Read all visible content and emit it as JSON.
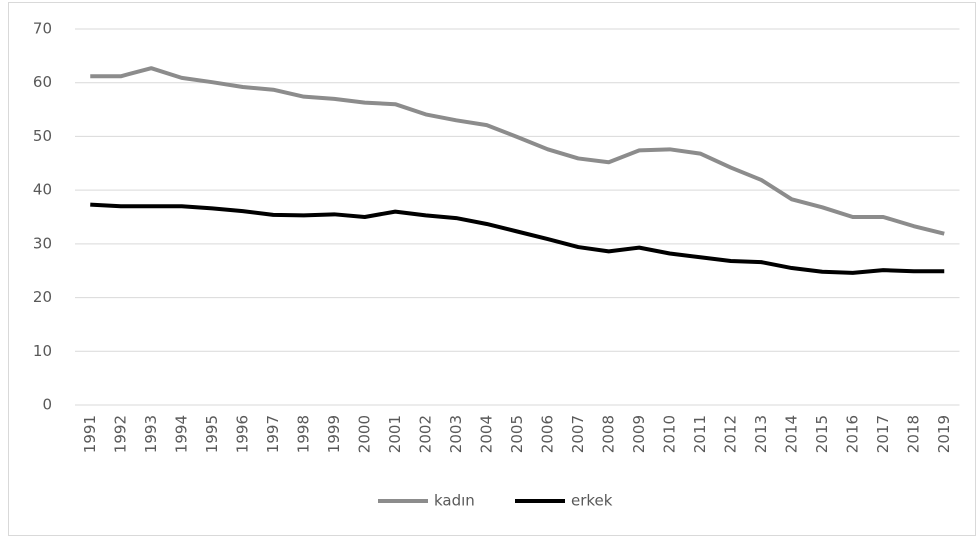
{
  "chart_data": {
    "type": "line",
    "categories": [
      "1991",
      "1992",
      "1993",
      "1994",
      "1995",
      "1996",
      "1997",
      "1998",
      "1999",
      "2000",
      "2001",
      "2002",
      "2003",
      "2004",
      "2005",
      "2006",
      "2007",
      "2008",
      "2009",
      "2010",
      "2011",
      "2012",
      "2013",
      "2014",
      "2015",
      "2016",
      "2017",
      "2018",
      "2019"
    ],
    "series": [
      {
        "name": "kadın",
        "color": "#8c8c8c",
        "values": [
          61.2,
          61.2,
          62.7,
          60.9,
          60.1,
          59.2,
          58.7,
          57.4,
          57.0,
          56.3,
          56.0,
          54.1,
          53.0,
          52.1,
          49.9,
          47.6,
          45.9,
          45.2,
          47.4,
          47.6,
          46.8,
          44.2,
          41.9,
          38.3,
          36.8,
          35.0,
          35.0,
          33.3,
          31.9
        ]
      },
      {
        "name": "erkek",
        "color": "#000000",
        "values": [
          37.3,
          37.0,
          37.0,
          37.0,
          36.6,
          36.1,
          35.4,
          35.3,
          35.5,
          35.0,
          36.0,
          35.3,
          34.8,
          33.7,
          32.3,
          30.9,
          29.4,
          28.6,
          29.3,
          28.2,
          27.5,
          26.8,
          26.6,
          25.5,
          24.8,
          24.6,
          25.1,
          24.9,
          24.9
        ]
      }
    ],
    "ylim": [
      0,
      70
    ],
    "yticks": [
      0,
      10,
      20,
      30,
      40,
      50,
      60,
      70
    ],
    "grid": true,
    "legend": "bottom"
  }
}
